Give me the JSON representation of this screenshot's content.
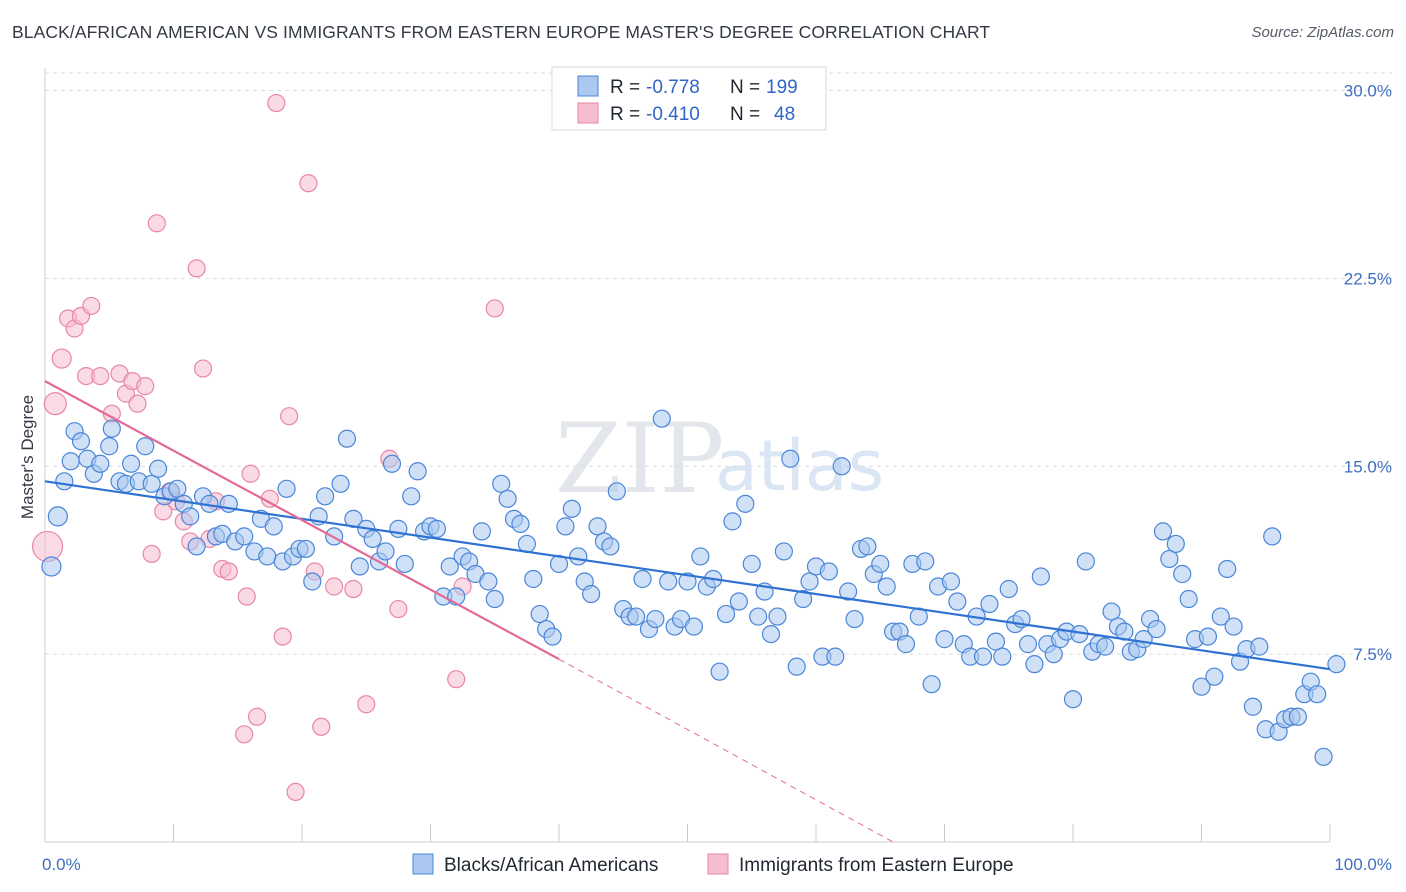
{
  "title": "BLACK/AFRICAN AMERICAN VS IMMIGRANTS FROM EASTERN EUROPE MASTER'S DEGREE CORRELATION CHART",
  "source": "Source: ZipAtlas.com",
  "watermark": {
    "zip": "ZIP",
    "atlas": "atlas"
  },
  "colors": {
    "blue_fill": "#aac8f0",
    "blue_stroke": "#4a86d8",
    "blue_line": "#2f72d2",
    "pink_fill": "#f6bcd0",
    "pink_stroke": "#e986a8",
    "pink_line": "#e46a95",
    "axis_text": "#3f6fc0",
    "grid": "#dadde2"
  },
  "chart_data": {
    "type": "scatter",
    "ylabel": "Master's Degree",
    "xlim": [
      0,
      100
    ],
    "ylim": [
      0,
      30.7
    ],
    "x_tick_labels": [
      "0.0%",
      "100.0%"
    ],
    "y_ticks": [
      7.5,
      15.0,
      22.5,
      30.0
    ],
    "y_tick_labels": [
      "7.5%",
      "15.0%",
      "22.5%",
      "30.0%"
    ],
    "grid": "horizontal-dashed",
    "legend": {
      "placement": "top-center",
      "rows": [
        {
          "r_label": "R =",
          "r_value": "-0.778",
          "n_label": "N =",
          "n_value": "199"
        },
        {
          "r_label": "R =",
          "r_value": "-0.410",
          "n_label": "N =",
          "n_value": "48"
        }
      ]
    },
    "series": [
      {
        "name": "Blacks/African Americans",
        "trend": {
          "x": [
            0,
            100
          ],
          "y": [
            14.4,
            6.9
          ]
        },
        "points": [
          [
            0.5,
            11.0
          ],
          [
            1,
            13.0
          ],
          [
            1.5,
            14.4
          ],
          [
            2,
            15.2
          ],
          [
            2.3,
            16.4
          ],
          [
            2.8,
            16.0
          ],
          [
            3.3,
            15.3
          ],
          [
            3.8,
            14.7
          ],
          [
            4.3,
            15.1
          ],
          [
            5,
            15.8
          ],
          [
            5.2,
            16.5
          ],
          [
            5.8,
            14.4
          ],
          [
            6.3,
            14.3
          ],
          [
            6.7,
            15.1
          ],
          [
            7.3,
            14.4
          ],
          [
            7.8,
            15.8
          ],
          [
            8.3,
            14.3
          ],
          [
            8.8,
            14.9
          ],
          [
            9.3,
            13.8
          ],
          [
            9.8,
            14.0
          ],
          [
            10.3,
            14.1
          ],
          [
            10.8,
            13.5
          ],
          [
            11.3,
            13.0
          ],
          [
            11.8,
            11.8
          ],
          [
            12.3,
            13.8
          ],
          [
            12.8,
            13.5
          ],
          [
            13.3,
            12.2
          ],
          [
            13.8,
            12.3
          ],
          [
            14.3,
            13.5
          ],
          [
            14.8,
            12.0
          ],
          [
            15.5,
            12.2
          ],
          [
            16.3,
            11.6
          ],
          [
            16.8,
            12.9
          ],
          [
            17.3,
            11.4
          ],
          [
            17.8,
            12.6
          ],
          [
            18.5,
            11.2
          ],
          [
            18.8,
            14.1
          ],
          [
            19.3,
            11.4
          ],
          [
            19.8,
            11.7
          ],
          [
            20.3,
            11.7
          ],
          [
            20.8,
            10.4
          ],
          [
            21.3,
            13.0
          ],
          [
            21.8,
            13.8
          ],
          [
            22.5,
            12.2
          ],
          [
            23.0,
            14.3
          ],
          [
            23.5,
            16.1
          ],
          [
            24.0,
            12.9
          ],
          [
            24.5,
            11.0
          ],
          [
            25.0,
            12.5
          ],
          [
            25.5,
            12.1
          ],
          [
            26.0,
            11.2
          ],
          [
            26.5,
            11.6
          ],
          [
            27.0,
            15.1
          ],
          [
            27.5,
            12.5
          ],
          [
            28.0,
            11.1
          ],
          [
            28.5,
            13.8
          ],
          [
            29.0,
            14.8
          ],
          [
            29.5,
            12.4
          ],
          [
            30.0,
            12.6
          ],
          [
            30.5,
            12.5
          ],
          [
            31.0,
            9.8
          ],
          [
            31.5,
            11.0
          ],
          [
            32.0,
            9.8
          ],
          [
            32.5,
            11.4
          ],
          [
            33.0,
            11.2
          ],
          [
            33.5,
            10.7
          ],
          [
            34.0,
            12.4
          ],
          [
            34.5,
            10.4
          ],
          [
            35.0,
            9.7
          ],
          [
            35.5,
            14.3
          ],
          [
            36.0,
            13.7
          ],
          [
            36.5,
            12.9
          ],
          [
            37.0,
            12.7
          ],
          [
            37.5,
            11.9
          ],
          [
            38.0,
            10.5
          ],
          [
            38.5,
            9.1
          ],
          [
            39.0,
            8.5
          ],
          [
            39.5,
            8.2
          ],
          [
            40.0,
            11.1
          ],
          [
            40.5,
            12.6
          ],
          [
            41.0,
            13.3
          ],
          [
            41.5,
            11.4
          ],
          [
            42.0,
            10.4
          ],
          [
            42.5,
            9.9
          ],
          [
            43.0,
            12.6
          ],
          [
            43.5,
            12.0
          ],
          [
            44.0,
            11.8
          ],
          [
            44.5,
            14.0
          ],
          [
            45.0,
            9.3
          ],
          [
            45.5,
            9.0
          ],
          [
            46.0,
            9.0
          ],
          [
            46.5,
            10.5
          ],
          [
            47.0,
            8.5
          ],
          [
            47.5,
            8.9
          ],
          [
            48.0,
            16.9
          ],
          [
            48.5,
            10.4
          ],
          [
            49.0,
            8.6
          ],
          [
            49.5,
            8.9
          ],
          [
            50.0,
            10.4
          ],
          [
            50.5,
            8.6
          ],
          [
            51.0,
            11.4
          ],
          [
            51.5,
            10.2
          ],
          [
            52.0,
            10.5
          ],
          [
            52.5,
            6.8
          ],
          [
            53.0,
            9.1
          ],
          [
            53.5,
            12.8
          ],
          [
            54.0,
            9.6
          ],
          [
            54.5,
            13.5
          ],
          [
            55.0,
            11.1
          ],
          [
            55.5,
            9.0
          ],
          [
            56.0,
            10.0
          ],
          [
            56.5,
            8.3
          ],
          [
            57.0,
            9.0
          ],
          [
            57.5,
            11.6
          ],
          [
            58.0,
            15.3
          ],
          [
            58.5,
            7.0
          ],
          [
            59.0,
            9.7
          ],
          [
            59.5,
            10.4
          ],
          [
            60.0,
            11.0
          ],
          [
            60.5,
            7.4
          ],
          [
            61.0,
            10.8
          ],
          [
            61.5,
            7.4
          ],
          [
            62.0,
            15.0
          ],
          [
            62.5,
            10.0
          ],
          [
            63.0,
            8.9
          ],
          [
            63.5,
            11.7
          ],
          [
            64.0,
            11.8
          ],
          [
            64.5,
            10.7
          ],
          [
            65.0,
            11.1
          ],
          [
            65.5,
            10.2
          ],
          [
            66.0,
            8.4
          ],
          [
            66.5,
            8.4
          ],
          [
            67.0,
            7.9
          ],
          [
            67.5,
            11.1
          ],
          [
            68.0,
            9.0
          ],
          [
            68.5,
            11.2
          ],
          [
            69.0,
            6.3
          ],
          [
            69.5,
            10.2
          ],
          [
            70.0,
            8.1
          ],
          [
            70.5,
            10.4
          ],
          [
            71.0,
            9.6
          ],
          [
            71.5,
            7.9
          ],
          [
            72.0,
            7.4
          ],
          [
            72.5,
            9.0
          ],
          [
            73.0,
            7.4
          ],
          [
            73.5,
            9.5
          ],
          [
            74.0,
            8.0
          ],
          [
            74.5,
            7.4
          ],
          [
            75.0,
            10.1
          ],
          [
            75.5,
            8.7
          ],
          [
            76.0,
            8.9
          ],
          [
            76.5,
            7.9
          ],
          [
            77.0,
            7.1
          ],
          [
            77.5,
            10.6
          ],
          [
            78.0,
            7.9
          ],
          [
            78.5,
            7.5
          ],
          [
            79.0,
            8.1
          ],
          [
            79.5,
            8.4
          ],
          [
            80.0,
            5.7
          ],
          [
            80.5,
            8.3
          ],
          [
            81.0,
            11.2
          ],
          [
            81.5,
            7.6
          ],
          [
            82.0,
            7.9
          ],
          [
            82.5,
            7.8
          ],
          [
            83.0,
            9.2
          ],
          [
            83.5,
            8.6
          ],
          [
            84.0,
            8.4
          ],
          [
            84.5,
            7.6
          ],
          [
            85.0,
            7.7
          ],
          [
            85.5,
            8.1
          ],
          [
            86.0,
            8.9
          ],
          [
            86.5,
            8.5
          ],
          [
            87.0,
            12.4
          ],
          [
            87.5,
            11.3
          ],
          [
            88.0,
            11.9
          ],
          [
            88.5,
            10.7
          ],
          [
            89.0,
            9.7
          ],
          [
            89.5,
            8.1
          ],
          [
            90.0,
            6.2
          ],
          [
            90.5,
            8.2
          ],
          [
            91.0,
            6.6
          ],
          [
            91.5,
            9.0
          ],
          [
            92.0,
            10.9
          ],
          [
            92.5,
            8.6
          ],
          [
            93.0,
            7.2
          ],
          [
            93.5,
            7.7
          ],
          [
            94.0,
            5.4
          ],
          [
            94.5,
            7.8
          ],
          [
            95.0,
            4.5
          ],
          [
            95.5,
            12.2
          ],
          [
            96.0,
            4.4
          ],
          [
            96.5,
            4.9
          ],
          [
            97.0,
            5.0
          ],
          [
            97.5,
            5.0
          ],
          [
            98.0,
            5.9
          ],
          [
            98.5,
            6.4
          ],
          [
            99.0,
            5.9
          ],
          [
            99.5,
            3.4
          ],
          [
            100.5,
            7.1
          ]
        ]
      },
      {
        "name": "Immigrants from Eastern Europe",
        "trend": {
          "x": [
            0,
            40
          ],
          "y": [
            18.4,
            7.3
          ]
        },
        "trend_extension": {
          "x": [
            40,
            66
          ],
          "y": [
            7.3,
            0.0
          ]
        },
        "points": [
          [
            0.2,
            11.8
          ],
          [
            0.8,
            17.5
          ],
          [
            1.3,
            19.3
          ],
          [
            1.8,
            20.9
          ],
          [
            2.3,
            20.5
          ],
          [
            2.8,
            21.0
          ],
          [
            3.6,
            21.4
          ],
          [
            3.2,
            18.6
          ],
          [
            4.3,
            18.6
          ],
          [
            5.2,
            17.1
          ],
          [
            5.8,
            18.7
          ],
          [
            6.3,
            17.9
          ],
          [
            6.8,
            18.4
          ],
          [
            7.2,
            17.5
          ],
          [
            7.8,
            18.2
          ],
          [
            8.3,
            11.5
          ],
          [
            8.7,
            24.7
          ],
          [
            9.2,
            13.2
          ],
          [
            9.7,
            14.0
          ],
          [
            10.2,
            13.6
          ],
          [
            10.8,
            12.8
          ],
          [
            11.3,
            12.0
          ],
          [
            11.8,
            22.9
          ],
          [
            12.3,
            18.9
          ],
          [
            12.8,
            12.1
          ],
          [
            13.3,
            13.6
          ],
          [
            13.8,
            10.9
          ],
          [
            14.3,
            10.8
          ],
          [
            15.7,
            9.8
          ],
          [
            16.0,
            14.7
          ],
          [
            16.5,
            5.0
          ],
          [
            15.5,
            4.3
          ],
          [
            17.5,
            13.7
          ],
          [
            18.0,
            29.5
          ],
          [
            18.5,
            8.2
          ],
          [
            19.0,
            17.0
          ],
          [
            19.5,
            2.0
          ],
          [
            20.5,
            26.3
          ],
          [
            21.0,
            10.8
          ],
          [
            21.5,
            4.6
          ],
          [
            22.5,
            10.2
          ],
          [
            24.0,
            10.1
          ],
          [
            25.0,
            5.5
          ],
          [
            26.8,
            15.3
          ],
          [
            27.5,
            9.3
          ],
          [
            32.0,
            6.5
          ],
          [
            32.5,
            10.2
          ],
          [
            35.0,
            21.3
          ]
        ]
      }
    ]
  }
}
